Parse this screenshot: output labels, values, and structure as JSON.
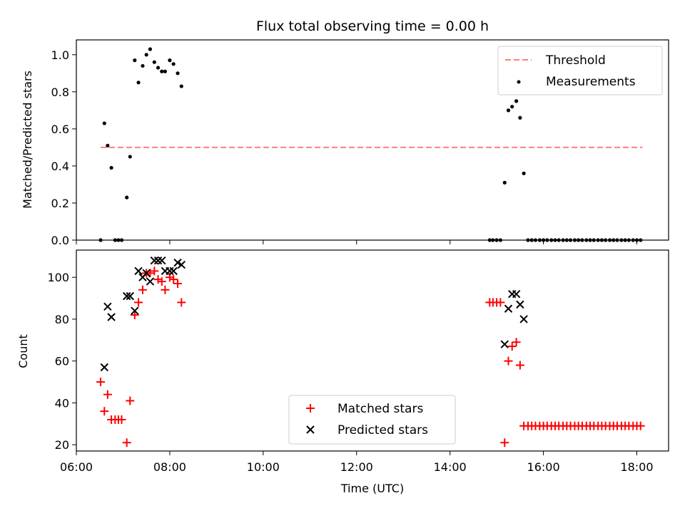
{
  "title": "Flux total observing time = 0.00 h",
  "chart_data": [
    {
      "type": "scatter",
      "ylabel": "Matched/Predicted stars",
      "xlim": [
        6.0,
        18.68
      ],
      "ylim": [
        0,
        1.08
      ],
      "yticks": [
        "0.0",
        "0.2",
        "0.4",
        "0.6",
        "0.8",
        "1.0"
      ],
      "yticks_values": [
        0,
        0.2,
        0.4,
        0.6,
        0.8,
        1.0
      ],
      "x_ticks_shown": [
        6,
        8,
        10,
        12,
        14,
        16,
        18
      ],
      "legend_position": "upper right",
      "legend": [
        {
          "label": "Threshold",
          "color": "#ff7f7f",
          "marker": "dashed-line"
        },
        {
          "label": "Measurements",
          "color": "#000000",
          "marker": "dot"
        }
      ],
      "threshold": {
        "value": 0.5,
        "x_start": 6.52,
        "x_end": 18.12
      },
      "series": [
        {
          "name": "Measurements",
          "x": [
            6.52,
            6.6,
            6.67,
            6.75,
            6.83,
            6.9,
            6.97,
            7.08,
            7.15,
            7.25,
            7.33,
            7.42,
            7.5,
            7.58,
            7.67,
            7.75,
            7.83,
            7.9,
            8.0,
            8.08,
            8.17,
            8.25,
            14.85,
            14.92,
            15.0,
            15.08,
            15.17,
            15.25,
            15.33,
            15.42,
            15.5,
            15.58,
            15.67,
            15.75,
            15.83,
            15.92,
            16.0,
            16.08,
            16.17,
            16.25,
            16.33,
            16.42,
            16.5,
            16.58,
            16.67,
            16.75,
            16.83,
            16.92,
            17.0,
            17.08,
            17.17,
            17.25,
            17.33,
            17.42,
            17.5,
            17.58,
            17.67,
            17.75,
            17.83,
            17.92,
            18.0,
            18.08
          ],
          "y": [
            0,
            0.63,
            0.51,
            0.39,
            0,
            0,
            0,
            0.23,
            0.45,
            0.97,
            0.85,
            0.94,
            1.0,
            1.03,
            0.96,
            0.93,
            0.91,
            0.91,
            0.97,
            0.95,
            0.9,
            0.83,
            0,
            0,
            0,
            0,
            0.31,
            0.7,
            0.72,
            0.75,
            0.66,
            0.36,
            0,
            0,
            0,
            0,
            0,
            0,
            0,
            0,
            0,
            0,
            0,
            0,
            0,
            0,
            0,
            0,
            0,
            0,
            0,
            0,
            0,
            0,
            0,
            0,
            0,
            0,
            0,
            0,
            0,
            0
          ],
          "color": "#000000"
        }
      ]
    },
    {
      "type": "scatter",
      "xlabel": "Time (UTC)",
      "ylabel": "Count",
      "xlim": [
        6.0,
        18.68
      ],
      "ylim": [
        17,
        113
      ],
      "xticks": [
        "06:00",
        "08:00",
        "10:00",
        "12:00",
        "14:00",
        "16:00",
        "18:00"
      ],
      "xticks_values": [
        6,
        8,
        10,
        12,
        14,
        16,
        18
      ],
      "yticks": [
        "20",
        "40",
        "60",
        "80",
        "100"
      ],
      "yticks_values": [
        20,
        40,
        60,
        80,
        100
      ],
      "legend_position": "lower center",
      "legend": [
        {
          "label": "Matched stars",
          "color": "#ff0000",
          "marker": "plus"
        },
        {
          "label": "Predicted stars",
          "color": "#000000",
          "marker": "x"
        }
      ],
      "series": [
        {
          "name": "Matched stars",
          "color": "#ff0000",
          "x": [
            6.52,
            6.6,
            6.67,
            6.75,
            6.83,
            6.9,
            6.97,
            7.08,
            7.15,
            7.25,
            7.33,
            7.42,
            7.5,
            7.58,
            7.67,
            7.75,
            7.83,
            7.9,
            8.0,
            8.08,
            8.17,
            8.25,
            14.85,
            14.92,
            15.0,
            15.08,
            15.17,
            15.25,
            15.33,
            15.42,
            15.5,
            15.58,
            15.67,
            15.75,
            15.83,
            15.92,
            16.0,
            16.08,
            16.17,
            16.25,
            16.33,
            16.42,
            16.5,
            16.58,
            16.67,
            16.75,
            16.83,
            16.92,
            17.0,
            17.08,
            17.17,
            17.25,
            17.33,
            17.42,
            17.5,
            17.58,
            17.67,
            17.75,
            17.83,
            17.92,
            18.0,
            18.08
          ],
          "y": [
            50,
            36,
            44,
            32,
            32,
            32,
            32,
            21,
            41,
            82,
            88,
            94,
            102,
            102,
            103,
            99,
            98,
            94,
            100,
            99,
            97,
            88,
            88,
            88,
            88,
            88,
            21,
            60,
            67,
            69,
            58,
            29,
            29,
            29,
            29,
            29,
            29,
            29,
            29,
            29,
            29,
            29,
            29,
            29,
            29,
            29,
            29,
            29,
            29,
            29,
            29,
            29,
            29,
            29,
            29,
            29,
            29,
            29,
            29,
            29,
            29,
            29
          ]
        },
        {
          "name": "Predicted stars",
          "color": "#000000",
          "x": [
            6.6,
            6.67,
            6.75,
            7.08,
            7.15,
            7.25,
            7.33,
            7.42,
            7.5,
            7.58,
            7.67,
            7.75,
            7.83,
            7.9,
            8.0,
            8.08,
            8.17,
            8.25,
            15.17,
            15.25,
            15.33,
            15.42,
            15.5,
            15.58
          ],
          "y": [
            57,
            86,
            81,
            91,
            91,
            84,
            103,
            100,
            102,
            98,
            108,
            108,
            108,
            103,
            103,
            103,
            107,
            106,
            68,
            85,
            92,
            92,
            87,
            80
          ]
        }
      ]
    }
  ]
}
